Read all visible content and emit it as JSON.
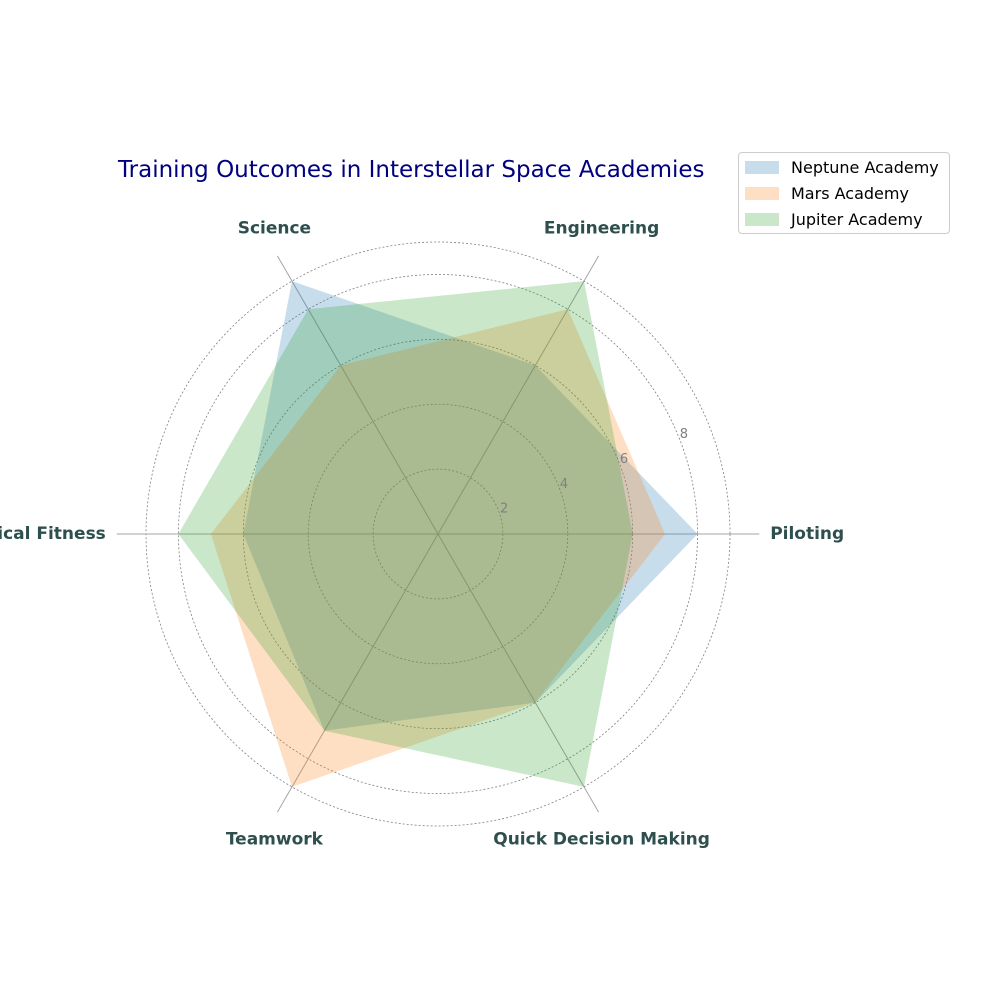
{
  "chart_data": {
    "type": "radar",
    "title": "Training Outcomes in Interstellar Space Academies",
    "categories": [
      "Piloting",
      "Engineering",
      "Science",
      "Physical Fitness",
      "Teamwork",
      "Quick Decision Making"
    ],
    "series": [
      {
        "name": "Neptune Academy",
        "values": [
          8,
          6,
          9,
          6,
          7,
          6
        ],
        "color": "#1f77b4"
      },
      {
        "name": "Mars Academy",
        "values": [
          7,
          8,
          6,
          7,
          9,
          6
        ],
        "color": "#ff7f0e"
      },
      {
        "name": "Jupiter Academy",
        "values": [
          6,
          9,
          8,
          8,
          7,
          9
        ],
        "color": "#2ca02c"
      }
    ],
    "rlim": [
      0,
      9
    ],
    "radial_ticks": [
      2,
      4,
      6,
      8
    ],
    "radial_tick_labels": [
      "2",
      "4",
      "6",
      "8"
    ],
    "grid": true,
    "legend_position": "top-right"
  }
}
